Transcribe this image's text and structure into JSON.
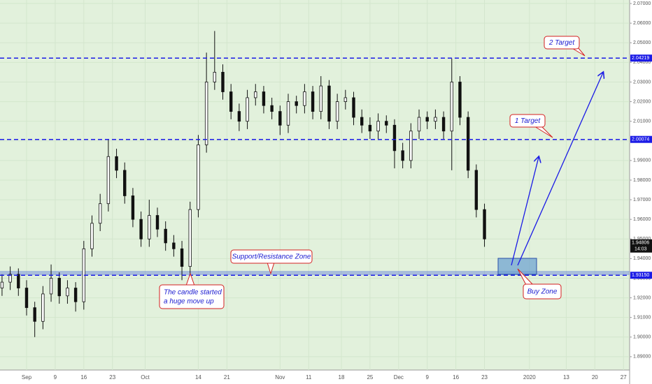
{
  "chart_data": {
    "type": "candlestick",
    "background": "#e2f1dc",
    "up_color": "#ffffff",
    "down_color": "#111111",
    "level_color": "#1a1ae6",
    "candles": {
      "x": [
        -5,
        -3,
        -1,
        1,
        3,
        5,
        7,
        9,
        11,
        13,
        15,
        17,
        19,
        21,
        23,
        25,
        27,
        29,
        31,
        33,
        35,
        37,
        39,
        41,
        43,
        45,
        47,
        49,
        51,
        53,
        55,
        57,
        59,
        61,
        63,
        65,
        67,
        69,
        71,
        73,
        75,
        77,
        79,
        81,
        83,
        85,
        87,
        89,
        91,
        93,
        95,
        97,
        99,
        101,
        103,
        105,
        107,
        109,
        111,
        113
      ],
      "open": [
        1.925,
        1.928,
        1.932,
        1.925,
        1.915,
        1.908,
        1.922,
        1.93,
        1.921,
        1.925,
        1.918,
        1.945,
        1.958,
        1.968,
        1.992,
        1.985,
        1.972,
        1.96,
        1.95,
        1.962,
        1.955,
        1.948,
        1.945,
        1.936,
        1.965,
        1.998,
        2.03,
        2.035,
        2.025,
        2.015,
        2.01,
        2.022,
        2.025,
        2.018,
        2.015,
        2.008,
        2.02,
        2.018,
        2.025,
        2.015,
        2.028,
        2.01,
        2.02,
        2.022,
        2.012,
        2.008,
        2.005,
        2.01,
        2.008,
        1.995,
        1.99,
        2.005,
        2.012,
        2.01,
        2.012,
        2.005,
        2.03,
        2.012,
        1.985,
        1.965
      ],
      "high": [
        1.932,
        1.936,
        1.935,
        1.929,
        1.918,
        1.926,
        1.937,
        1.933,
        1.929,
        1.928,
        1.949,
        1.962,
        1.973,
        2.001,
        1.996,
        1.989,
        1.976,
        1.964,
        1.97,
        1.966,
        1.959,
        1.952,
        1.949,
        1.969,
        2.003,
        2.045,
        2.056,
        2.039,
        2.029,
        2.019,
        2.026,
        2.029,
        2.028,
        2.022,
        2.018,
        2.024,
        2.023,
        2.029,
        2.028,
        2.033,
        2.031,
        2.024,
        2.026,
        2.025,
        2.016,
        2.012,
        2.014,
        2.013,
        2.011,
        1.999,
        2.009,
        2.016,
        2.015,
        2.016,
        2.015,
        2.042,
        2.033,
        2.015,
        1.988,
        1.968
      ],
      "low": [
        1.921,
        1.924,
        1.921,
        1.911,
        1.9,
        1.904,
        1.918,
        1.917,
        1.917,
        1.913,
        1.914,
        1.941,
        1.954,
        1.964,
        1.981,
        1.968,
        1.956,
        1.946,
        1.946,
        1.951,
        1.944,
        1.941,
        1.929,
        1.932,
        1.961,
        1.994,
        2.026,
        2.021,
        2.011,
        2.005,
        2.006,
        2.018,
        2.014,
        2.011,
        2.003,
        2.004,
        2.014,
        2.014,
        2.011,
        2.011,
        2.006,
        2.006,
        2.016,
        2.008,
        2.004,
        2.001,
        2.001,
        2.004,
        1.986,
        1.986,
        1.986,
        2.001,
        2.006,
        2.006,
        2.001,
        1.985,
        2.008,
        1.981,
        1.961,
        1.946
      ],
      "close": [
        1.928,
        1.932,
        1.925,
        1.915,
        1.908,
        1.922,
        1.93,
        1.921,
        1.925,
        1.918,
        1.945,
        1.958,
        1.968,
        1.992,
        1.985,
        1.972,
        1.96,
        1.95,
        1.962,
        1.955,
        1.948,
        1.945,
        1.936,
        1.965,
        1.998,
        2.03,
        2.035,
        2.025,
        2.015,
        2.01,
        2.022,
        2.025,
        2.018,
        2.015,
        2.008,
        2.02,
        2.018,
        2.025,
        2.015,
        2.028,
        2.01,
        2.02,
        2.022,
        2.012,
        2.008,
        2.005,
        2.01,
        2.008,
        1.995,
        1.99,
        2.005,
        2.012,
        2.01,
        2.012,
        2.005,
        2.03,
        2.012,
        1.985,
        1.965,
        1.95
      ]
    },
    "xlim": [
      -5.5,
      148.5
    ],
    "xticks": [
      {
        "value": 1,
        "label": "Sep"
      },
      {
        "value": 8,
        "label": "9"
      },
      {
        "value": 15,
        "label": "16"
      },
      {
        "value": 22,
        "label": "23"
      },
      {
        "value": 30,
        "label": "Oct"
      },
      {
        "value": 43,
        "label": "14"
      },
      {
        "value": 50,
        "label": "21"
      },
      {
        "value": 63,
        "label": "Nov"
      },
      {
        "value": 70,
        "label": "11"
      },
      {
        "value": 78,
        "label": "18"
      },
      {
        "value": 85,
        "label": "25"
      },
      {
        "value": 92,
        "label": "Dec"
      },
      {
        "value": 99,
        "label": "9"
      },
      {
        "value": 106,
        "label": "16"
      },
      {
        "value": 113,
        "label": "23"
      },
      {
        "value": 124,
        "label": "2020"
      },
      {
        "value": 133,
        "label": "13"
      },
      {
        "value": 140,
        "label": "20"
      },
      {
        "value": 147,
        "label": "27"
      }
    ],
    "ylim": [
      1.8832,
      2.0718
    ],
    "yticks": [
      {
        "value": 1.89,
        "label": "1.89000"
      },
      {
        "value": 1.9,
        "label": "1.90000"
      },
      {
        "value": 1.91,
        "label": "1.91000"
      },
      {
        "value": 1.92,
        "label": "1.92000"
      },
      {
        "value": 1.93,
        "label": "1.93000"
      },
      {
        "value": 1.94,
        "label": "1.94000"
      },
      {
        "value": 1.95,
        "label": "1.95000"
      },
      {
        "value": 1.96,
        "label": "1.96000"
      },
      {
        "value": 1.97,
        "label": "1.97000"
      },
      {
        "value": 1.98,
        "label": "1.98000"
      },
      {
        "value": 1.99,
        "label": "1.99000"
      },
      {
        "value": 2.0,
        "label": "2.00000"
      },
      {
        "value": 2.01,
        "label": "2.01000"
      },
      {
        "value": 2.02,
        "label": "2.02000"
      },
      {
        "value": 2.03,
        "label": "2.03000"
      },
      {
        "value": 2.04,
        "label": "2.04000"
      },
      {
        "value": 2.05,
        "label": "2.05000"
      },
      {
        "value": 2.06,
        "label": "2.06000"
      },
      {
        "value": 2.07,
        "label": "2.07000"
      }
    ],
    "levels": [
      {
        "value": 2.04219,
        "label": "2.04219"
      },
      {
        "value": 2.00074,
        "label": "2.00074"
      },
      {
        "value": 1.9315,
        "label": "1.93150"
      }
    ],
    "last_price": {
      "value": 1.94806,
      "label": "1.94806",
      "countdown": "14:03"
    },
    "annotations": {
      "target_2": "2 Target",
      "target_1": "1 Target",
      "zone": "Support/Resistance Zone",
      "candle": [
        "The candle started",
        "a huge move up"
      ],
      "buy_zone": "Buy Zone"
    }
  }
}
